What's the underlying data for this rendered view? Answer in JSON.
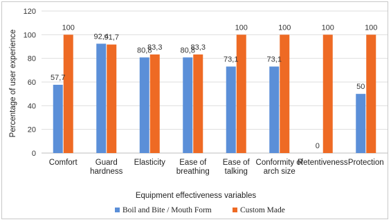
{
  "chart_data": {
    "type": "bar",
    "xlabel": "Equipment effectiveness variables",
    "ylabel": "Percentage of user experience",
    "ylim": [
      0,
      120
    ],
    "yticks": [
      "0",
      "20",
      "40",
      "60",
      "80",
      "100",
      "120"
    ],
    "ytick_values": [
      0,
      20,
      40,
      60,
      80,
      100,
      120
    ],
    "grid": true,
    "legend_position": "bottom",
    "categories": [
      [
        "Comfort"
      ],
      [
        "Guard",
        "hardness"
      ],
      [
        "Elasticity"
      ],
      [
        "Ease of",
        "breathing"
      ],
      [
        "Ease of",
        "talking"
      ],
      [
        "Conformity of",
        "arch size"
      ],
      [
        "Retentiveness"
      ],
      [
        "Protection"
      ]
    ],
    "series": [
      {
        "name": "Boil and Bite / Mouth Form",
        "color": "#5b8fd8",
        "values": [
          57.7,
          92.4,
          80.8,
          80.8,
          73.1,
          73.1,
          0,
          50
        ],
        "labels": [
          "57,7",
          "92,4",
          "80,8",
          "80,8",
          "73,1",
          "73,1",
          "0",
          "50"
        ]
      },
      {
        "name": "Custom Made",
        "color": "#ee6a24",
        "values": [
          100,
          91.7,
          83.3,
          83.3,
          100,
          100,
          100,
          100
        ],
        "labels": [
          "100",
          "91,7",
          "83,3",
          "83,3",
          "100",
          "100",
          "100",
          "100"
        ]
      }
    ]
  }
}
